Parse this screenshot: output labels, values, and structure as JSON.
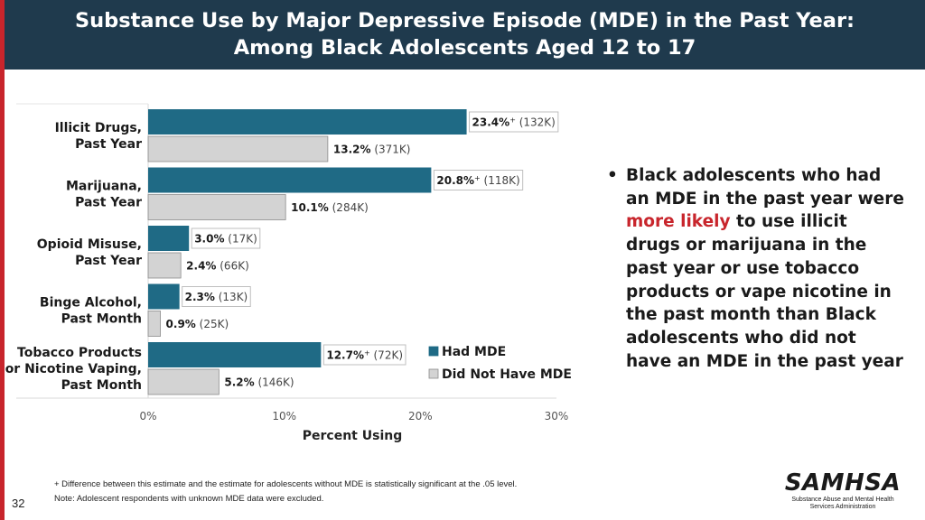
{
  "slide": {
    "title_line1": "Substance Use by Major Depressive Episode (MDE) in the Past Year:",
    "title_line2": "Among Black Adolescents Aged 12 to 17",
    "page_number": "32",
    "bullet": {
      "part1": "Black adolescents who had an MDE in the past year were ",
      "highlight": "more likely",
      "part2": " to use illicit drugs or marijuana in the past year or use tobacco products or vape nicotine in the past month than Black adolescents who did not have an MDE in the past year"
    },
    "footnote1": "+ Difference between this estimate and the estimate for adolescents without MDE is statistically significant at the .05 level.",
    "footnote2": "Note: Adolescent respondents with unknown MDE data were excluded.",
    "logo": {
      "word": "SAMHSA",
      "sub1": "Substance Abuse and Mental Health",
      "sub2": "Services Administration"
    }
  },
  "chart_data": {
    "type": "bar",
    "orientation": "horizontal",
    "xlabel": "Percent Using",
    "xlim": [
      0,
      30
    ],
    "xticks": [
      0,
      10,
      20,
      30
    ],
    "tick_suffix": "%",
    "categories": [
      [
        "Illicit Drugs,",
        "Past Year"
      ],
      [
        "Marijuana,",
        "Past Year"
      ],
      [
        "Opioid Misuse,",
        "Past Year"
      ],
      [
        "Binge Alcohol,",
        "Past Month"
      ],
      [
        "Tobacco Products",
        "or Nicotine Vaping,",
        "Past Month"
      ]
    ],
    "series": [
      {
        "name": "Had MDE",
        "color": "#1f6a85",
        "values": [
          23.4,
          20.8,
          3.0,
          2.3,
          12.7
        ],
        "labels": [
          "23.4%",
          "20.8%",
          "3.0%",
          "2.3%",
          "12.7%"
        ],
        "significant": [
          true,
          true,
          false,
          false,
          true
        ],
        "counts": [
          "(132K)",
          "(118K)",
          "(17K)",
          "(13K)",
          "(72K)"
        ]
      },
      {
        "name": "Did Not Have MDE",
        "color": "#d3d3d3",
        "values": [
          13.2,
          10.1,
          2.4,
          0.9,
          5.2
        ],
        "labels": [
          "13.2%",
          "10.1%",
          "2.4%",
          "0.9%",
          "5.2%"
        ],
        "significant": [
          false,
          false,
          false,
          false,
          false
        ],
        "counts": [
          "(371K)",
          "(284K)",
          "(66K)",
          "(25K)",
          "(146K)"
        ]
      }
    ],
    "sig_marker": "+",
    "legend_position": "bottom-right"
  }
}
